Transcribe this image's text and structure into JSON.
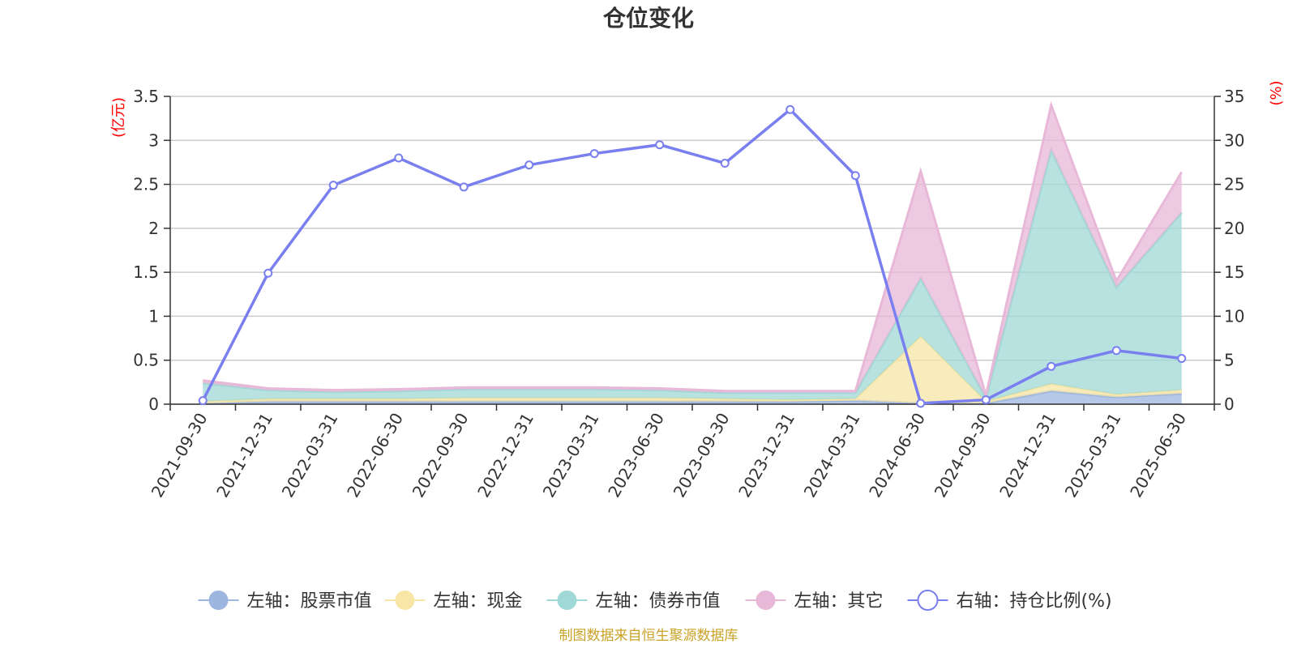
{
  "title": "仓位变化",
  "left_unit": "(亿元)",
  "right_unit": "(%)",
  "source_note": "制图数据来自恒生聚源数据库",
  "chart_data": {
    "type": "area",
    "title": "仓位变化",
    "categories": [
      "2021-09-30",
      "2021-12-31",
      "2022-03-31",
      "2022-06-30",
      "2022-09-30",
      "2022-12-31",
      "2023-03-31",
      "2023-06-30",
      "2023-09-30",
      "2023-12-31",
      "2024-03-31",
      "2024-06-30",
      "2024-09-30",
      "2024-12-31",
      "2025-03-31",
      "2025-06-30"
    ],
    "left_axis": {
      "unit": "(亿元)",
      "ylim": [
        0,
        3.5
      ],
      "ticks": [
        "0",
        "0.5",
        "1",
        "1.5",
        "2",
        "2.5",
        "3",
        "3.5"
      ]
    },
    "right_axis": {
      "unit": "(%)",
      "ylim": [
        0,
        35
      ],
      "ticks": [
        "0",
        "5",
        "10",
        "15",
        "20",
        "25",
        "30",
        "35"
      ]
    },
    "stacked": true,
    "series": [
      {
        "name": "左轴：股票市值",
        "axis": "left",
        "type": "area",
        "color": "#9db6e0",
        "values": [
          0.01,
          0.03,
          0.03,
          0.03,
          0.03,
          0.03,
          0.03,
          0.03,
          0.03,
          0.03,
          0.04,
          0.01,
          0.01,
          0.15,
          0.08,
          0.12
        ]
      },
      {
        "name": "左轴：现金",
        "axis": "left",
        "type": "area",
        "color": "#f7e6a6",
        "values": [
          0.02,
          0.03,
          0.03,
          0.03,
          0.04,
          0.04,
          0.04,
          0.04,
          0.03,
          0.02,
          0.02,
          0.76,
          0.02,
          0.08,
          0.03,
          0.04
        ]
      },
      {
        "name": "左轴：债券市值",
        "axis": "left",
        "type": "area",
        "color": "#9fd8d6",
        "values": [
          0.21,
          0.1,
          0.08,
          0.09,
          0.1,
          0.1,
          0.1,
          0.09,
          0.07,
          0.08,
          0.07,
          0.66,
          0.04,
          2.66,
          1.22,
          2.02
        ]
      },
      {
        "name": "左轴：其它",
        "axis": "left",
        "type": "area",
        "color": "#e8b8d8",
        "values": [
          0.03,
          0.02,
          0.02,
          0.02,
          0.02,
          0.02,
          0.02,
          0.02,
          0.02,
          0.02,
          0.02,
          1.22,
          0.03,
          0.51,
          0.07,
          0.46
        ]
      },
      {
        "name": "右轴：持仓比例(%)",
        "axis": "right",
        "type": "line",
        "color": "#7a7ff0",
        "values": [
          0.4,
          14.9,
          24.9,
          28.0,
          24.7,
          27.2,
          28.5,
          29.5,
          27.4,
          33.5,
          26.0,
          0.1,
          0.5,
          4.3,
          6.1,
          5.2
        ]
      }
    ],
    "grid": true,
    "legend_position": "bottom"
  }
}
